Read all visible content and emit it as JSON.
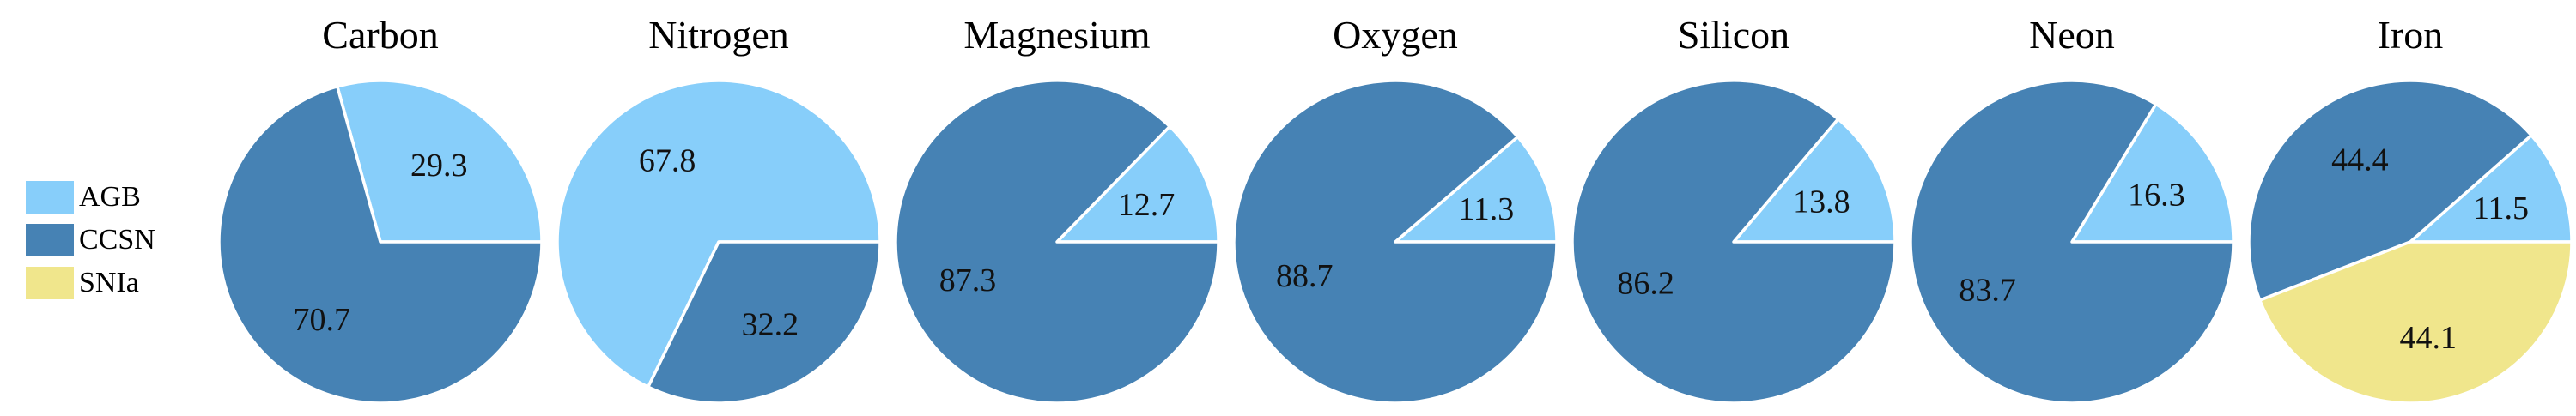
{
  "chart_data": {
    "type": "pie",
    "legend_position": "left",
    "colors": {
      "AGB": "#87cefa",
      "CCSN": "#4682b4",
      "SNIa": "#f0e68c"
    },
    "legend": [
      {
        "name": "AGB",
        "color": "#87cefa"
      },
      {
        "name": "CCSN",
        "color": "#4682b4"
      },
      {
        "name": "SNIa",
        "color": "#f0e68c"
      }
    ],
    "charts": [
      {
        "title": "Carbon",
        "slices": [
          {
            "label": "AGB",
            "value": 29.3
          },
          {
            "label": "CCSN",
            "value": 70.7
          }
        ]
      },
      {
        "title": "Nitrogen",
        "slices": [
          {
            "label": "AGB",
            "value": 67.8
          },
          {
            "label": "CCSN",
            "value": 32.2
          }
        ]
      },
      {
        "title": "Magnesium",
        "slices": [
          {
            "label": "AGB",
            "value": 12.7
          },
          {
            "label": "CCSN",
            "value": 87.3
          }
        ]
      },
      {
        "title": "Oxygen",
        "slices": [
          {
            "label": "AGB",
            "value": 11.3
          },
          {
            "label": "CCSN",
            "value": 88.7
          }
        ]
      },
      {
        "title": "Silicon",
        "slices": [
          {
            "label": "AGB",
            "value": 13.8
          },
          {
            "label": "CCSN",
            "value": 86.2
          }
        ]
      },
      {
        "title": "Neon",
        "slices": [
          {
            "label": "AGB",
            "value": 16.3
          },
          {
            "label": "CCSN",
            "value": 83.7
          }
        ]
      },
      {
        "title": "Iron",
        "slices": [
          {
            "label": "AGB",
            "value": 11.5
          },
          {
            "label": "CCSN",
            "value": 44.4
          },
          {
            "label": "SNIa",
            "value": 44.1
          }
        ]
      }
    ]
  }
}
